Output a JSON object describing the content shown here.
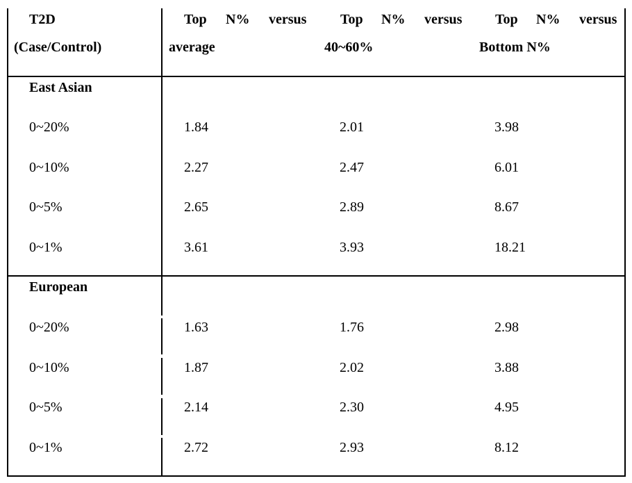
{
  "header": {
    "col1_line1": "T2D",
    "col1_line2": "(Case/Control)",
    "col2": {
      "w1": "Top",
      "w2": "N%",
      "w3": "versus",
      "line2": "average"
    },
    "col3": {
      "w1": "Top",
      "w2": "N%",
      "w3": "versus",
      "line2": "40~60%"
    },
    "col4": {
      "w1": "Top",
      "w2": "N%",
      "w3": "versus",
      "line2": "Bottom N%"
    }
  },
  "groups": [
    {
      "name": "East Asian",
      "rows": [
        {
          "range": "0~20%",
          "vs_average": "1.84",
          "vs_40_60": "2.01",
          "vs_bottom": "3.98"
        },
        {
          "range": "0~10%",
          "vs_average": "2.27",
          "vs_40_60": "2.47",
          "vs_bottom": "6.01"
        },
        {
          "range": "0~5%",
          "vs_average": "2.65",
          "vs_40_60": "2.89",
          "vs_bottom": "8.67"
        },
        {
          "range": "0~1%",
          "vs_average": "3.61",
          "vs_40_60": "3.93",
          "vs_bottom": "18.21"
        }
      ]
    },
    {
      "name": "European",
      "rows": [
        {
          "range": "0~20%",
          "vs_average": "1.63",
          "vs_40_60": "1.76",
          "vs_bottom": "2.98"
        },
        {
          "range": "0~10%",
          "vs_average": "1.87",
          "vs_40_60": "2.02",
          "vs_bottom": "3.88"
        },
        {
          "range": "0~5%",
          "vs_average": "2.14",
          "vs_40_60": "2.30",
          "vs_bottom": "4.95"
        },
        {
          "range": "0~1%",
          "vs_average": "2.72",
          "vs_40_60": "2.93",
          "vs_bottom": "8.12"
        }
      ]
    }
  ]
}
